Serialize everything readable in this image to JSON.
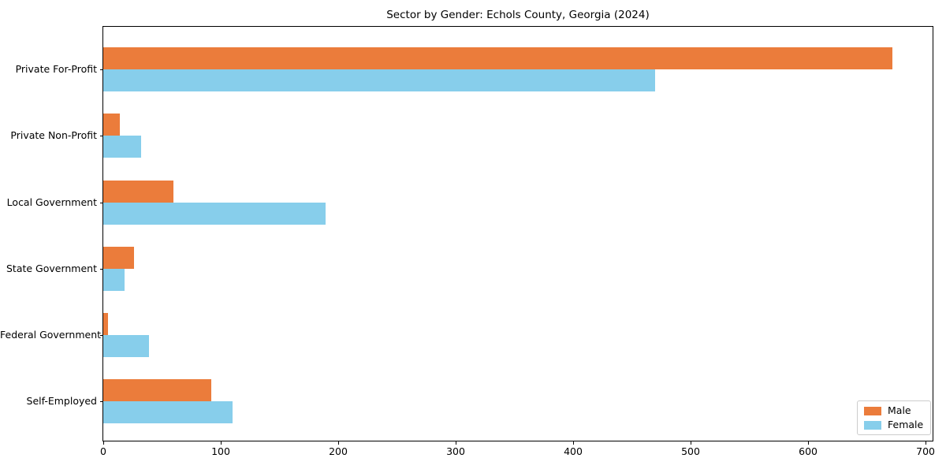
{
  "figure": {
    "title": "Sector by Gender: Echols County, Georgia (2024)",
    "background_color": "#ffffff",
    "axis_color": "#000000",
    "legend_border_color": "#cccccc"
  },
  "chart_data": {
    "type": "bar",
    "orientation": "horizontal",
    "title": "Sector by Gender: Echols County, Georgia (2024)",
    "categories": [
      "Private For-Profit",
      "Private Non-Profit",
      "Local Government",
      "State Government",
      "Federal Government",
      "Self-Employed"
    ],
    "series": [
      {
        "name": "Male",
        "color": "#EB7C3B",
        "values": [
          672,
          14,
          60,
          26,
          4,
          92
        ]
      },
      {
        "name": "Female",
        "color": "#87CEEB",
        "values": [
          470,
          32,
          189,
          18,
          39,
          110
        ]
      }
    ],
    "xlabel": "",
    "ylabel": "",
    "xlim": [
      0,
      706
    ],
    "xticks": [
      0,
      100,
      200,
      300,
      400,
      500,
      600,
      700
    ],
    "grid": false,
    "legend_position": "lower right"
  }
}
